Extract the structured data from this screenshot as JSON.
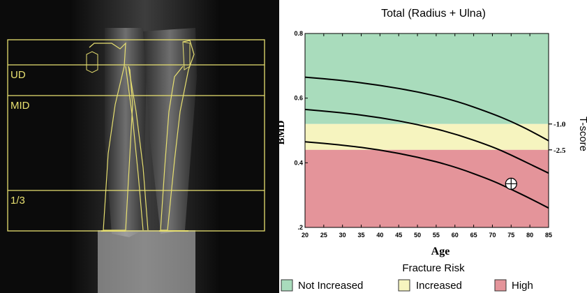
{
  "scan": {
    "region_labels": [
      "UD",
      "MID",
      "1/3"
    ],
    "colors": {
      "outline": "#e8e070",
      "background": "#0b0b0b"
    }
  },
  "chart_data": {
    "type": "line",
    "title": "Total (Radius + Ulna)",
    "xlabel": "Age",
    "ylabel": "BMD",
    "y2label": "T-score",
    "xlim": [
      20,
      85
    ],
    "ylim": [
      0.2,
      0.8
    ],
    "xticks": [
      20,
      25,
      30,
      35,
      40,
      45,
      50,
      55,
      60,
      65,
      70,
      75,
      80,
      85
    ],
    "yticks": [
      0.2,
      0.4,
      0.6,
      0.8
    ],
    "yticklabels": [
      ".2",
      "0.4",
      "0.6",
      "0.8"
    ],
    "bands": [
      {
        "name": "Not Increased",
        "from": 0.52,
        "to": 0.8,
        "color": "#a9dcbc"
      },
      {
        "name": "Increased",
        "from": 0.44,
        "to": 0.52,
        "color": "#f6f4bf"
      },
      {
        "name": "High",
        "from": 0.2,
        "to": 0.44,
        "color": "#e4949a"
      }
    ],
    "tscore_markers": [
      {
        "label": "-1.0",
        "y": 0.52
      },
      {
        "label": "-2.5",
        "y": 0.44
      }
    ],
    "series": [
      {
        "x": [
          20,
          30,
          40,
          50,
          60,
          70,
          75,
          80,
          85
        ],
        "values": [
          0.665,
          0.655,
          0.64,
          0.62,
          0.593,
          0.552,
          0.528,
          0.5,
          0.468
        ]
      },
      {
        "x": [
          20,
          30,
          40,
          50,
          60,
          70,
          75,
          80,
          85
        ],
        "values": [
          0.565,
          0.555,
          0.54,
          0.519,
          0.49,
          0.45,
          0.424,
          0.396,
          0.368
        ]
      },
      {
        "x": [
          20,
          30,
          40,
          50,
          60,
          70,
          75,
          80,
          85
        ],
        "values": [
          0.465,
          0.455,
          0.44,
          0.418,
          0.388,
          0.345,
          0.318,
          0.29,
          0.26
        ]
      }
    ],
    "patient_point": {
      "x": 75,
      "y": 0.335
    },
    "legend": {
      "title": "Fracture Risk",
      "items": [
        "Not Increased",
        "Increased",
        "High"
      ]
    }
  }
}
